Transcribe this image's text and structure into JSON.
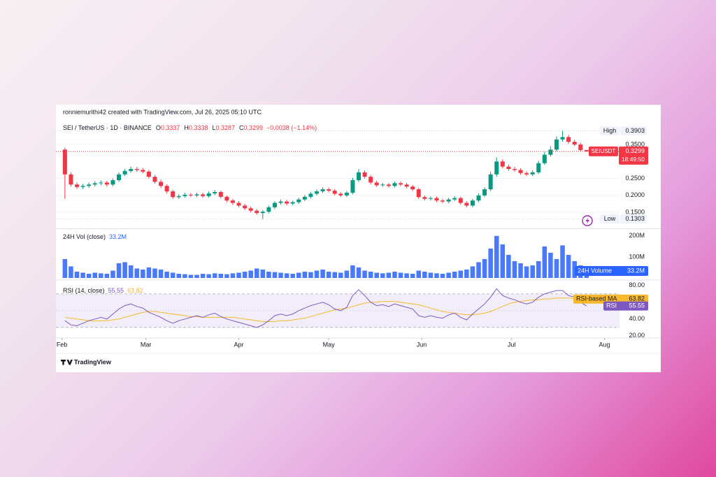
{
  "credit": "ronniemurithi42 created with TradingView.com, Jul 26, 2025 05:10 UTC",
  "brand": "TradingView",
  "chart_data": [
    {
      "type": "candlestick",
      "legend": {
        "symbol": "SEI / TetherUS · 1D · BINANCE",
        "letters": [
          "O",
          "H",
          "L",
          "C"
        ],
        "change": "−0.0038 (−1.14%)"
      },
      "symbol_badge": "SEIUSDT",
      "countdown": "18:49:50",
      "high_label": "High",
      "low_label": "Low",
      "up_color": "#089981",
      "down_color": "#f23645",
      "x": [
        1,
        3,
        5,
        7,
        9,
        11,
        13,
        15,
        17,
        19,
        21,
        23,
        25,
        27,
        29,
        31,
        33,
        35,
        37,
        39,
        41,
        43,
        45,
        47,
        49,
        51,
        53,
        55,
        57,
        59,
        61,
        63,
        65,
        67,
        69,
        71,
        73,
        75,
        77,
        79,
        81,
        83,
        85,
        87,
        89,
        91,
        93,
        95,
        97,
        99,
        101,
        103,
        105,
        107,
        109,
        111,
        113,
        115,
        117,
        119,
        121,
        123,
        125,
        127,
        129,
        131,
        133,
        135,
        137,
        139,
        141,
        143,
        145,
        147,
        149,
        151,
        153,
        155,
        157,
        159,
        161,
        163,
        165,
        167,
        169,
        171,
        173,
        175
      ],
      "open": [
        0.335,
        0.262,
        0.232,
        0.225,
        0.228,
        0.232,
        0.236,
        0.238,
        0.232,
        0.245,
        0.262,
        0.272,
        0.278,
        0.275,
        0.27,
        0.255,
        0.24,
        0.228,
        0.212,
        0.195,
        0.198,
        0.202,
        0.2,
        0.203,
        0.198,
        0.206,
        0.21,
        0.196,
        0.185,
        0.178,
        0.17,
        0.162,
        0.155,
        0.148,
        0.152,
        0.165,
        0.178,
        0.182,
        0.176,
        0.18,
        0.188,
        0.196,
        0.205,
        0.212,
        0.218,
        0.214,
        0.205,
        0.2,
        0.208,
        0.245,
        0.268,
        0.255,
        0.238,
        0.23,
        0.232,
        0.228,
        0.236,
        0.232,
        0.226,
        0.218,
        0.195,
        0.19,
        0.192,
        0.185,
        0.182,
        0.188,
        0.192,
        0.178,
        0.17,
        0.185,
        0.2,
        0.218,
        0.262,
        0.3,
        0.285,
        0.278,
        0.275,
        0.266,
        0.262,
        0.268,
        0.295,
        0.32,
        0.335,
        0.365,
        0.372,
        0.358,
        0.35,
        0.3337
      ],
      "high": [
        0.341,
        0.268,
        0.238,
        0.234,
        0.238,
        0.242,
        0.244,
        0.243,
        0.25,
        0.268,
        0.278,
        0.285,
        0.284,
        0.281,
        0.275,
        0.26,
        0.246,
        0.233,
        0.217,
        0.204,
        0.208,
        0.207,
        0.208,
        0.208,
        0.212,
        0.216,
        0.214,
        0.2,
        0.19,
        0.183,
        0.175,
        0.167,
        0.16,
        0.157,
        0.17,
        0.183,
        0.188,
        0.187,
        0.185,
        0.193,
        0.201,
        0.21,
        0.218,
        0.224,
        0.223,
        0.219,
        0.21,
        0.213,
        0.252,
        0.278,
        0.274,
        0.26,
        0.243,
        0.237,
        0.237,
        0.241,
        0.241,
        0.237,
        0.231,
        0.222,
        0.2,
        0.197,
        0.197,
        0.19,
        0.193,
        0.198,
        0.196,
        0.183,
        0.19,
        0.206,
        0.224,
        0.27,
        0.312,
        0.306,
        0.291,
        0.284,
        0.28,
        0.271,
        0.274,
        0.302,
        0.328,
        0.345,
        0.374,
        0.3903,
        0.378,
        0.364,
        0.355,
        0.3338
      ],
      "low": [
        0.19,
        0.226,
        0.219,
        0.219,
        0.222,
        0.226,
        0.23,
        0.226,
        0.227,
        0.24,
        0.257,
        0.267,
        0.27,
        0.265,
        0.25,
        0.235,
        0.222,
        0.206,
        0.189,
        0.19,
        0.193,
        0.195,
        0.195,
        0.193,
        0.193,
        0.201,
        0.191,
        0.18,
        0.172,
        0.165,
        0.157,
        0.15,
        0.143,
        0.1303,
        0.147,
        0.16,
        0.173,
        0.171,
        0.171,
        0.175,
        0.183,
        0.191,
        0.2,
        0.207,
        0.209,
        0.2,
        0.195,
        0.195,
        0.203,
        0.24,
        0.25,
        0.233,
        0.225,
        0.225,
        0.223,
        0.223,
        0.227,
        0.221,
        0.213,
        0.19,
        0.185,
        0.185,
        0.18,
        0.177,
        0.177,
        0.183,
        0.173,
        0.165,
        0.165,
        0.18,
        0.195,
        0.213,
        0.255,
        0.28,
        0.273,
        0.27,
        0.261,
        0.257,
        0.257,
        0.263,
        0.29,
        0.315,
        0.33,
        0.358,
        0.352,
        0.345,
        0.33,
        0.3287
      ],
      "close": [
        0.262,
        0.232,
        0.225,
        0.228,
        0.232,
        0.236,
        0.238,
        0.232,
        0.245,
        0.262,
        0.272,
        0.278,
        0.275,
        0.27,
        0.255,
        0.24,
        0.228,
        0.212,
        0.195,
        0.198,
        0.202,
        0.2,
        0.203,
        0.198,
        0.206,
        0.21,
        0.196,
        0.185,
        0.178,
        0.17,
        0.162,
        0.155,
        0.148,
        0.152,
        0.165,
        0.178,
        0.182,
        0.176,
        0.18,
        0.188,
        0.196,
        0.205,
        0.212,
        0.218,
        0.214,
        0.205,
        0.2,
        0.208,
        0.245,
        0.268,
        0.255,
        0.238,
        0.23,
        0.232,
        0.228,
        0.236,
        0.232,
        0.226,
        0.218,
        0.195,
        0.19,
        0.192,
        0.185,
        0.182,
        0.188,
        0.192,
        0.178,
        0.17,
        0.185,
        0.2,
        0.218,
        0.262,
        0.3,
        0.285,
        0.278,
        0.275,
        0.266,
        0.262,
        0.268,
        0.295,
        0.32,
        0.335,
        0.365,
        0.372,
        0.358,
        0.35,
        0.3337,
        0.3299
      ],
      "xlim": [
        -2,
        186
      ],
      "xticks": [
        {
          "value": 0,
          "label": "Feb"
        },
        {
          "value": 28,
          "label": "Mar"
        },
        {
          "value": 59,
          "label": "Apr"
        },
        {
          "value": 89,
          "label": "May"
        },
        {
          "value": 120,
          "label": "Jun"
        },
        {
          "value": 150,
          "label": "Jul"
        },
        {
          "value": 181,
          "label": "Aug"
        }
      ],
      "ylim": [
        0.107,
        0.422
      ],
      "yticks": [
        {
          "value": 0.15,
          "label": "0.1500"
        },
        {
          "value": 0.2,
          "label": "0.2000"
        },
        {
          "value": 0.25,
          "label": "0.2500"
        },
        {
          "value": 0.35,
          "label": "0.3500"
        }
      ],
      "grid": true
    },
    {
      "type": "bar",
      "title": "24H Vol (close)",
      "badge": "24H Volume",
      "color": "#2962ff",
      "values": [
        90000000,
        55000000,
        30000000,
        25000000,
        20000000,
        25000000,
        22000000,
        20000000,
        35000000,
        70000000,
        75000000,
        60000000,
        45000000,
        40000000,
        50000000,
        45000000,
        40000000,
        30000000,
        25000000,
        20000000,
        18000000,
        15000000,
        15000000,
        20000000,
        18000000,
        22000000,
        20000000,
        18000000,
        22000000,
        25000000,
        30000000,
        35000000,
        45000000,
        40000000,
        30000000,
        28000000,
        25000000,
        22000000,
        20000000,
        25000000,
        30000000,
        28000000,
        35000000,
        40000000,
        30000000,
        28000000,
        25000000,
        35000000,
        60000000,
        50000000,
        35000000,
        30000000,
        25000000,
        22000000,
        25000000,
        30000000,
        25000000,
        22000000,
        20000000,
        35000000,
        30000000,
        25000000,
        22000000,
        20000000,
        25000000,
        30000000,
        35000000,
        40000000,
        55000000,
        75000000,
        90000000,
        140000000,
        200000000,
        160000000,
        110000000,
        80000000,
        70000000,
        55000000,
        60000000,
        80000000,
        150000000,
        120000000,
        90000000,
        155000000,
        110000000,
        80000000,
        60000000,
        33200000
      ],
      "value_label": "33.2M",
      "ylim": [
        0,
        226000000
      ],
      "yticks": [
        {
          "value": 100000000,
          "label": "100M"
        },
        {
          "value": 200000000,
          "label": "200M"
        }
      ]
    },
    {
      "type": "line",
      "title": "RSI (14, close)",
      "series": [
        {
          "name": "RSI",
          "color": "#7e57c2",
          "values": [
            38,
            33,
            32,
            35,
            38,
            40,
            42,
            40,
            46,
            52,
            56,
            58,
            55,
            53,
            48,
            45,
            42,
            38,
            35,
            38,
            40,
            42,
            44,
            42,
            45,
            47,
            43,
            40,
            38,
            36,
            34,
            32,
            30,
            33,
            38,
            44,
            46,
            44,
            46,
            50,
            53,
            56,
            58,
            60,
            57,
            52,
            50,
            54,
            68,
            75,
            68,
            60,
            56,
            57,
            55,
            58,
            56,
            54,
            52,
            44,
            42,
            44,
            42,
            41,
            45,
            47,
            42,
            39,
            46,
            52,
            58,
            66,
            76,
            68,
            65,
            63,
            60,
            58,
            60,
            66,
            70,
            72,
            74,
            74,
            68,
            66,
            60,
            55.55
          ]
        },
        {
          "name": "RSI-based MA",
          "color": "#f5b82e",
          "values": [
            42,
            41,
            40,
            39,
            38,
            38,
            38,
            38,
            39,
            40,
            42,
            44,
            46,
            48,
            49,
            49,
            48,
            47,
            46,
            45,
            44,
            43,
            43,
            42,
            42,
            42,
            42,
            42,
            42,
            41,
            40,
            39,
            38,
            37,
            37,
            37,
            38,
            38,
            39,
            40,
            41,
            43,
            45,
            47,
            49,
            51,
            52,
            53,
            55,
            57,
            59,
            60,
            60,
            61,
            61,
            61,
            60,
            59,
            58,
            57,
            55,
            53,
            51,
            49,
            48,
            47,
            46,
            45,
            45,
            46,
            47,
            49,
            52,
            55,
            58,
            60,
            61,
            62,
            63,
            63,
            64,
            64,
            65,
            65,
            65,
            64,
            64,
            63.82
          ]
        }
      ],
      "bands": [
        30,
        70
      ],
      "midline": 50,
      "ylim": [
        19,
        84
      ],
      "yticks": [
        {
          "value": 20,
          "label": "20.00"
        },
        {
          "value": 40,
          "label": "40.00"
        },
        {
          "value": 80,
          "label": "80.00"
        }
      ]
    }
  ]
}
